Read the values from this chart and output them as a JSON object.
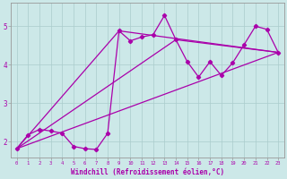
{
  "xlabel": "Windchill (Refroidissement éolien,°C)",
  "bg_color": "#cce8e8",
  "line_color": "#aa00aa",
  "xlim": [
    -0.5,
    23.5
  ],
  "ylim": [
    1.6,
    5.6
  ],
  "yticks": [
    2,
    3,
    4,
    5
  ],
  "xticks": [
    0,
    1,
    2,
    3,
    4,
    5,
    6,
    7,
    8,
    9,
    10,
    11,
    12,
    13,
    14,
    15,
    16,
    17,
    18,
    19,
    20,
    21,
    22,
    23
  ],
  "series_x": [
    0,
    1,
    2,
    3,
    4,
    5,
    6,
    7,
    8,
    9,
    10,
    11,
    12,
    13,
    14,
    15,
    16,
    17,
    18,
    19,
    20,
    21,
    22,
    23
  ],
  "series_y": [
    1.82,
    2.18,
    2.32,
    2.28,
    2.22,
    1.88,
    1.82,
    1.8,
    2.22,
    4.88,
    4.62,
    4.72,
    4.78,
    5.28,
    4.65,
    4.08,
    3.68,
    4.08,
    3.72,
    4.05,
    4.52,
    5.0,
    4.92,
    4.32
  ],
  "line1_x": [
    0,
    23
  ],
  "line1_y": [
    1.82,
    4.32
  ],
  "line2_x": [
    0,
    9,
    23
  ],
  "line2_y": [
    1.82,
    4.88,
    4.32
  ],
  "line3_x": [
    0,
    14,
    23
  ],
  "line3_y": [
    1.82,
    4.65,
    4.32
  ]
}
